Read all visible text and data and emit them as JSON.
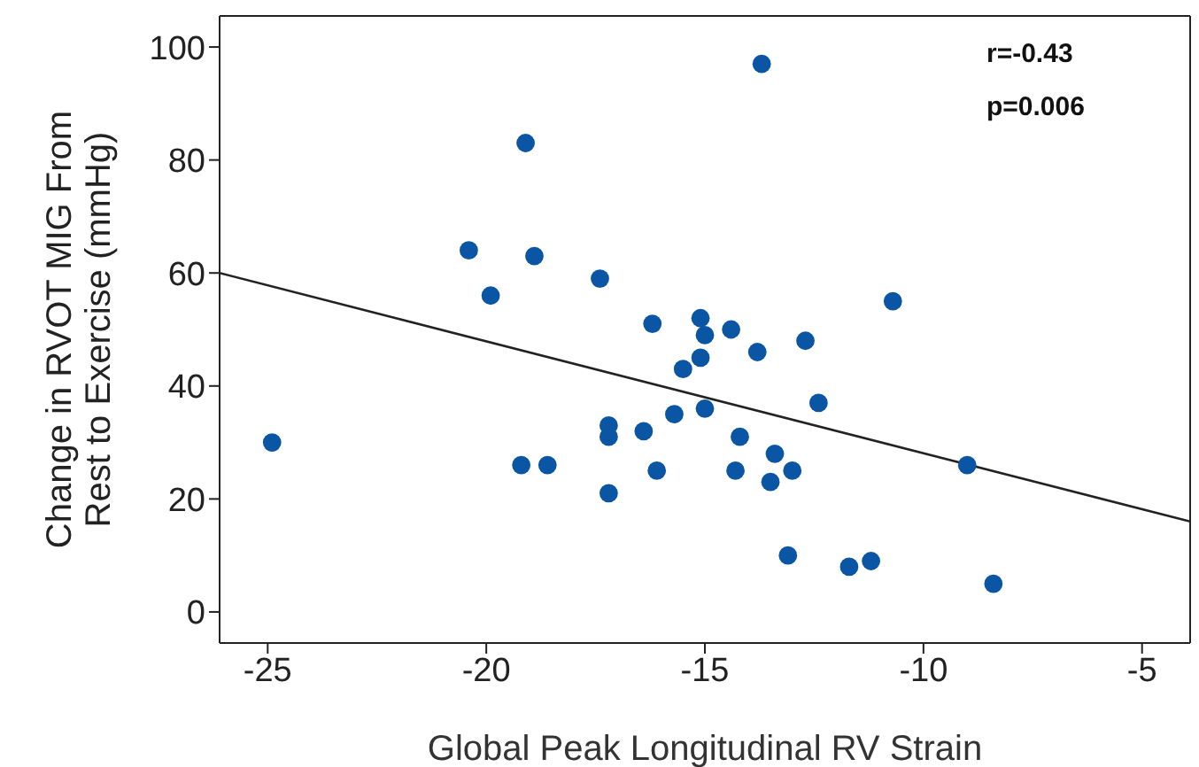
{
  "chart_data": {
    "type": "scatter",
    "xlabel": "Global Peak Longitudinal RV Strain",
    "ylabel": "Change in RVOT MIG From Rest to Exercise (mmHg)",
    "annotations": [
      "r=-0.43",
      "p=0.006"
    ],
    "xlim": [
      -26.1,
      -3.9
    ],
    "xticks": [
      -25,
      -20,
      -15,
      -10,
      -5
    ],
    "ylim": [
      -5.5,
      105.5
    ],
    "yticks": [
      0,
      20,
      40,
      60,
      80,
      100
    ],
    "marker": "circle",
    "series": [
      {
        "color": "#0a56a4",
        "x": [
          -24.9,
          -20.4,
          -19.9,
          -19.1,
          -18.9,
          -19.2,
          -18.6,
          -17.4,
          -17.2,
          -17.2,
          -17.2,
          -16.4,
          -16.2,
          -16.1,
          -15.7,
          -15.5,
          -15.1,
          -15.0,
          -15.1,
          -15.0,
          -14.4,
          -14.2,
          -14.3,
          -13.7,
          -13.8,
          -13.4,
          -13.5,
          -13.1,
          -13.0,
          -12.7,
          -12.4,
          -11.7,
          -11.2,
          -10.7,
          -9.0,
          -8.4
        ],
        "values": [
          30,
          64,
          56,
          83,
          63,
          26,
          26,
          59,
          33,
          31,
          21,
          32,
          51,
          25,
          35,
          43,
          52,
          49,
          45,
          36,
          50,
          31,
          25,
          97,
          46,
          28,
          23,
          10,
          25,
          48,
          37,
          8,
          9,
          55,
          26,
          5
        ]
      },
      {
        "type": "line",
        "color": "#222222",
        "x": [
          -26.1,
          -3.9
        ],
        "values": [
          60,
          16
        ],
        "marker": "none",
        "line_style": "solid"
      }
    ]
  }
}
